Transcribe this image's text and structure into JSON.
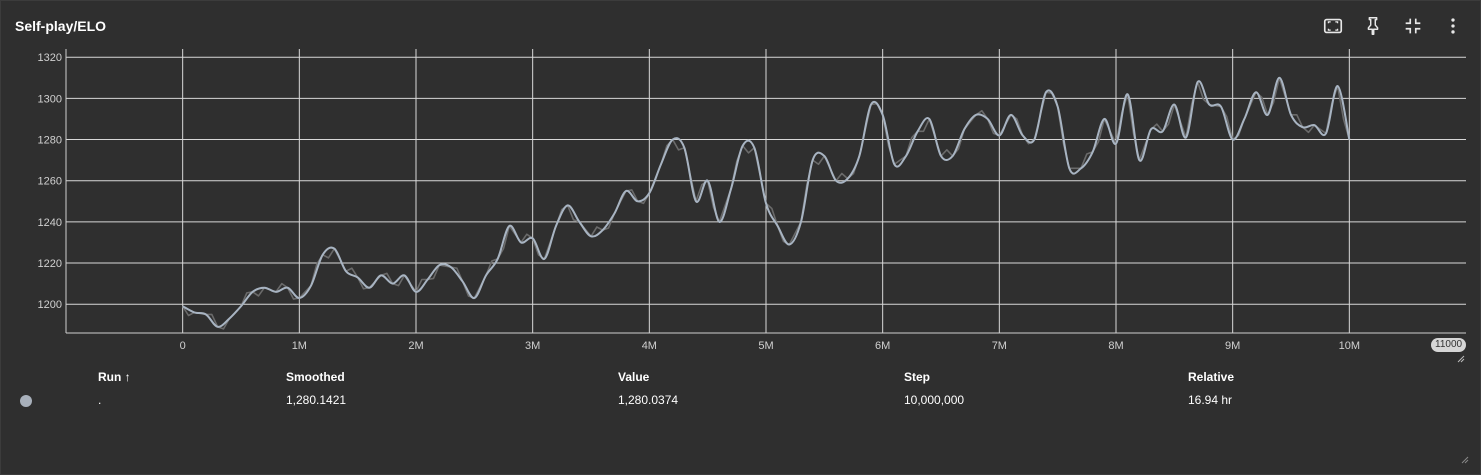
{
  "card": {
    "title": "Self-play/ELO"
  },
  "toolbar": [
    {
      "name": "fit-domain-icon"
    },
    {
      "name": "pin-icon"
    },
    {
      "name": "collapse-icon"
    },
    {
      "name": "more-vert-icon"
    }
  ],
  "axis_extent_label": "11000",
  "table": {
    "headers": {
      "run": "Run ↑",
      "smoothed": "Smoothed",
      "value": "Value",
      "step": "Step",
      "relative": "Relative"
    },
    "row": {
      "run": ".",
      "smoothed": "1,280.1421",
      "value": "1,280.0374",
      "step": "10,000,000",
      "relative": "16.94 hr"
    },
    "run_color": "#a8b0bb"
  },
  "chart_data": {
    "type": "line",
    "title": "",
    "xlabel": "",
    "ylabel": "",
    "xlim": [
      -1000000,
      11000000
    ],
    "ylim": [
      1186,
      1324
    ],
    "x_ticks": [
      0,
      1000000,
      2000000,
      3000000,
      4000000,
      5000000,
      6000000,
      7000000,
      8000000,
      9000000,
      10000000
    ],
    "x_tick_labels": [
      "0",
      "1M",
      "2M",
      "3M",
      "4M",
      "5M",
      "6M",
      "7M",
      "8M",
      "9M",
      "10M"
    ],
    "y_ticks": [
      1200,
      1220,
      1240,
      1260,
      1280,
      1300,
      1320
    ],
    "y_tick_labels": [
      "1200",
      "1220",
      "1240",
      "1260",
      "1280",
      "1300",
      "1320"
    ],
    "grid": true,
    "line_color": "#a8b4c2",
    "raw_color": "#6a6a6a",
    "series": [
      {
        "x": [
          0,
          100000,
          200000,
          300000,
          400000,
          500000,
          600000,
          700000,
          800000,
          900000,
          1000000,
          1100000,
          1200000,
          1300000,
          1400000,
          1500000,
          1600000,
          1700000,
          1800000,
          1900000,
          2000000,
          2100000,
          2200000,
          2300000,
          2400000,
          2500000,
          2600000,
          2700000,
          2800000,
          2900000,
          3000000,
          3100000,
          3200000,
          3300000,
          3400000,
          3500000,
          3600000,
          3700000,
          3800000,
          3900000,
          4000000,
          4100000,
          4200000,
          4300000,
          4400000,
          4500000,
          4600000,
          4700000,
          4800000,
          4900000,
          5000000,
          5100000,
          5200000,
          5300000,
          5400000,
          5500000,
          5600000,
          5700000,
          5800000,
          5900000,
          6000000,
          6100000,
          6200000,
          6300000,
          6400000,
          6500000,
          6600000,
          6700000,
          6800000,
          6900000,
          7000000,
          7100000,
          7200000,
          7300000,
          7400000,
          7500000,
          7600000,
          7700000,
          7800000,
          7900000,
          8000000,
          8100000,
          8200000,
          8300000,
          8400000,
          8500000,
          8600000,
          8700000,
          8800000,
          8900000,
          9000000,
          9100000,
          9200000,
          9300000,
          9400000,
          9500000,
          9600000,
          9700000,
          9800000,
          9900000,
          10000000
        ],
        "y": [
          1199,
          1196,
          1195,
          1189,
          1193,
          1199,
          1206,
          1208,
          1206,
          1208,
          1203,
          1209,
          1224,
          1227,
          1216,
          1213,
          1208,
          1214,
          1210,
          1214,
          1206,
          1212,
          1219,
          1218,
          1211,
          1203,
          1214,
          1222,
          1238,
          1230,
          1232,
          1222,
          1238,
          1248,
          1240,
          1233,
          1236,
          1244,
          1255,
          1250,
          1254,
          1268,
          1280,
          1276,
          1250,
          1260,
          1240,
          1256,
          1277,
          1276,
          1249,
          1238,
          1229,
          1240,
          1270,
          1272,
          1260,
          1261,
          1272,
          1297,
          1292,
          1268,
          1272,
          1284,
          1290,
          1272,
          1272,
          1285,
          1292,
          1290,
          1282,
          1292,
          1282,
          1280,
          1303,
          1296,
          1266,
          1266,
          1274,
          1290,
          1278,
          1302,
          1270,
          1285,
          1284,
          1297,
          1281,
          1308,
          1297,
          1296,
          1280,
          1290,
          1303,
          1292,
          1310,
          1292,
          1286,
          1287,
          1283,
          1306,
          1280
        ]
      }
    ]
  }
}
